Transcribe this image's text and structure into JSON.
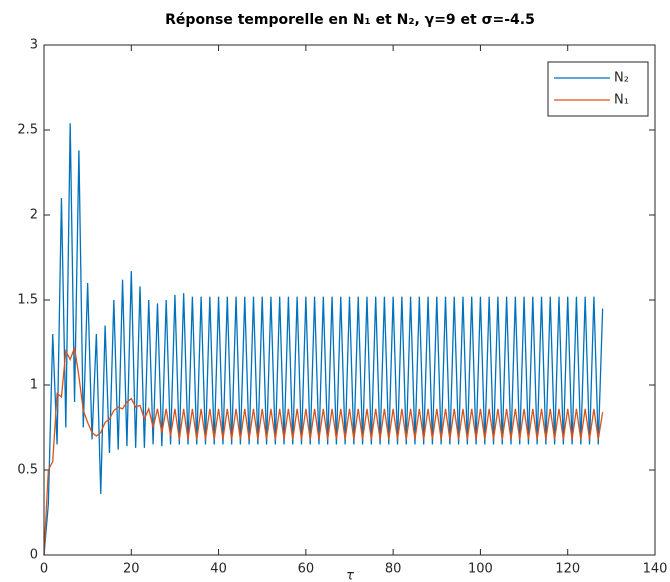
{
  "chart_data": {
    "type": "line",
    "title": "Réponse temporelle en N₁ et N₂, γ=9 et σ=-4.5",
    "xlabel": "τ",
    "x": [
      0,
      1,
      2,
      3,
      4,
      5,
      6,
      7,
      8,
      9,
      10,
      11,
      12,
      13,
      14,
      15,
      16,
      17,
      18,
      19,
      20,
      21,
      22,
      23,
      24,
      25,
      26,
      27,
      28,
      29,
      30,
      31,
      32,
      33,
      34,
      35,
      36,
      37,
      38,
      39,
      40,
      41,
      42,
      43,
      44,
      45,
      46,
      47,
      48,
      49,
      50,
      51,
      52,
      53,
      54,
      55,
      56,
      57,
      58,
      59,
      60,
      61,
      62,
      63,
      64,
      65,
      66,
      67,
      68,
      69,
      70,
      71,
      72,
      73,
      74,
      75,
      76,
      77,
      78,
      79,
      80,
      81,
      82,
      83,
      84,
      85,
      86,
      87,
      88,
      89,
      90,
      91,
      92,
      93,
      94,
      95,
      96,
      97,
      98,
      99,
      100,
      101,
      102,
      103,
      104,
      105,
      106,
      107,
      108,
      109,
      110,
      111,
      112,
      113,
      114,
      115,
      116,
      117,
      118,
      119,
      120,
      121,
      122,
      123,
      124,
      125,
      126,
      127,
      128
    ],
    "series": [
      {
        "name": "N₂",
        "color": "#0072bd",
        "values": [
          0,
          0.3,
          1.3,
          0.65,
          2.1,
          0.75,
          2.54,
          0.9,
          2.38,
          0.75,
          1.6,
          0.68,
          1.3,
          0.36,
          1.35,
          0.6,
          1.5,
          0.62,
          1.62,
          0.64,
          1.67,
          0.63,
          1.58,
          0.63,
          1.5,
          0.65,
          1.48,
          0.64,
          1.5,
          0.65,
          1.53,
          0.65,
          1.54,
          0.65,
          1.52,
          0.65,
          1.52,
          0.65,
          1.52,
          0.65,
          1.52,
          0.65,
          1.52,
          0.65,
          1.52,
          0.65,
          1.52,
          0.65,
          1.52,
          0.65,
          1.52,
          0.65,
          1.52,
          0.65,
          1.52,
          0.65,
          1.52,
          0.65,
          1.52,
          0.65,
          1.52,
          0.65,
          1.52,
          0.65,
          1.52,
          0.65,
          1.52,
          0.65,
          1.52,
          0.65,
          1.52,
          0.65,
          1.52,
          0.65,
          1.52,
          0.65,
          1.52,
          0.65,
          1.52,
          0.65,
          1.52,
          0.65,
          1.52,
          0.65,
          1.52,
          0.65,
          1.52,
          0.65,
          1.52,
          0.65,
          1.52,
          0.65,
          1.52,
          0.65,
          1.52,
          0.65,
          1.52,
          0.65,
          1.52,
          0.65,
          1.52,
          0.65,
          1.52,
          0.65,
          1.52,
          0.65,
          1.52,
          0.65,
          1.52,
          0.65,
          1.52,
          0.65,
          1.52,
          0.65,
          1.52,
          0.65,
          1.52,
          0.65,
          1.52,
          0.65,
          1.52,
          0.65,
          1.52,
          0.65,
          1.52,
          0.65,
          1.52,
          0.65,
          1.45
        ]
      },
      {
        "name": "N₁",
        "color": "#d95319",
        "values": [
          0,
          0.5,
          0.55,
          0.95,
          0.93,
          1.2,
          1.15,
          1.22,
          1.05,
          0.85,
          0.78,
          0.72,
          0.7,
          0.72,
          0.78,
          0.8,
          0.85,
          0.87,
          0.86,
          0.9,
          0.92,
          0.87,
          0.88,
          0.8,
          0.86,
          0.75,
          0.86,
          0.72,
          0.86,
          0.7,
          0.86,
          0.68,
          0.86,
          0.68,
          0.86,
          0.68,
          0.86,
          0.68,
          0.86,
          0.68,
          0.86,
          0.68,
          0.86,
          0.68,
          0.86,
          0.68,
          0.86,
          0.68,
          0.86,
          0.68,
          0.86,
          0.68,
          0.86,
          0.68,
          0.86,
          0.68,
          0.86,
          0.68,
          0.86,
          0.68,
          0.86,
          0.68,
          0.86,
          0.68,
          0.86,
          0.68,
          0.86,
          0.68,
          0.86,
          0.68,
          0.86,
          0.68,
          0.86,
          0.68,
          0.86,
          0.68,
          0.86,
          0.68,
          0.86,
          0.68,
          0.86,
          0.68,
          0.86,
          0.68,
          0.86,
          0.68,
          0.86,
          0.68,
          0.86,
          0.68,
          0.86,
          0.68,
          0.86,
          0.68,
          0.86,
          0.68,
          0.86,
          0.68,
          0.86,
          0.68,
          0.86,
          0.68,
          0.86,
          0.68,
          0.86,
          0.68,
          0.86,
          0.68,
          0.86,
          0.68,
          0.86,
          0.68,
          0.86,
          0.68,
          0.86,
          0.68,
          0.86,
          0.68,
          0.86,
          0.68,
          0.86,
          0.68,
          0.86,
          0.68,
          0.86,
          0.68,
          0.86,
          0.68,
          0.84
        ]
      }
    ],
    "xlim": [
      0,
      140
    ],
    "xticks": [
      0,
      20,
      40,
      60,
      80,
      100,
      120,
      140
    ],
    "ylim": [
      0,
      3
    ],
    "yticks": [
      0,
      0.5,
      1,
      1.5,
      2,
      2.5,
      3
    ],
    "legend": "top-right"
  }
}
